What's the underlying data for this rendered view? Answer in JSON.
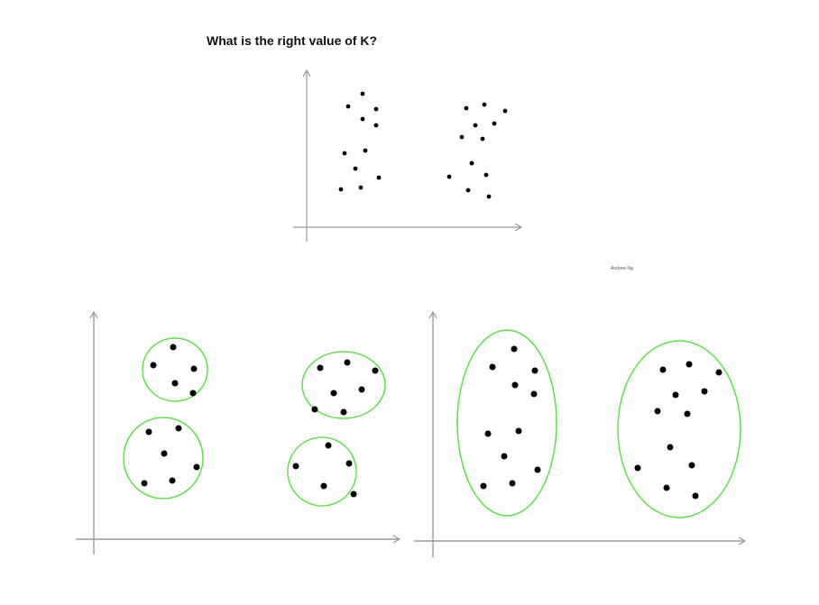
{
  "title": "What is the right value of K?",
  "credit": "Andrew Ng",
  "colors": {
    "axis": "#9a9a9a",
    "point": "#000000",
    "cluster_outline": "#5fe04a"
  },
  "panels": [
    {
      "id": "unclustered",
      "clusters": 0
    },
    {
      "id": "four-clusters",
      "clusters": 4
    },
    {
      "id": "two-clusters",
      "clusters": 2
    }
  ]
}
